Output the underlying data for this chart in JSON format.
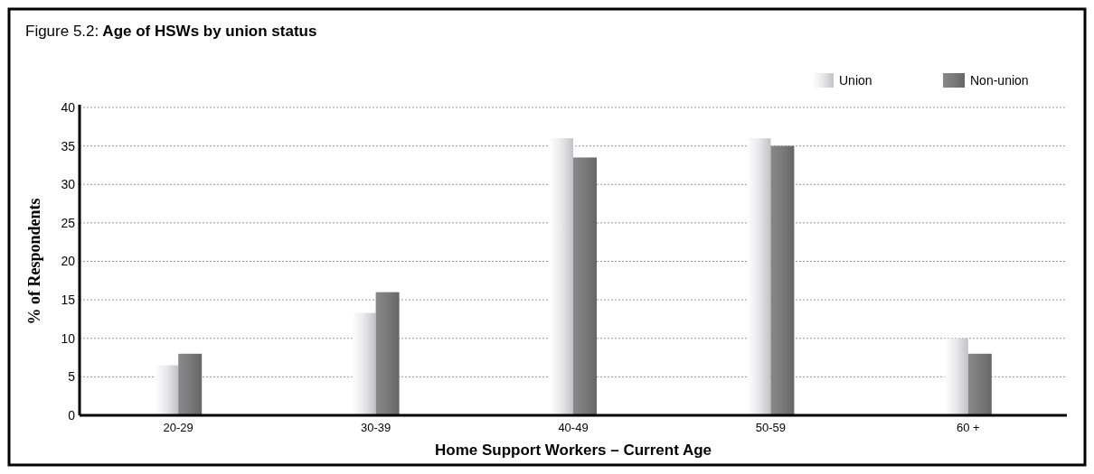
{
  "chart_data": {
    "type": "bar",
    "title": "Figure 5.2: Age of HSWs by union status",
    "xlabel": "Home Support Workers – Current Age",
    "ylabel": "% of Respondents",
    "categories": [
      "20-29",
      "30-39",
      "40-49",
      "50-59",
      "60 +"
    ],
    "series": [
      {
        "name": "Union",
        "color": "#e8e8ea",
        "values": [
          6.5,
          13.3,
          36,
          36,
          10
        ]
      },
      {
        "name": "Non-union",
        "color": "#7a7a7a",
        "values": [
          8,
          16,
          33.5,
          35,
          8
        ]
      }
    ],
    "ylim": [
      0,
      40
    ],
    "yticks": [
      0,
      5,
      10,
      15,
      20,
      25,
      30,
      35,
      40
    ],
    "grid": "y",
    "legend": "top right"
  }
}
